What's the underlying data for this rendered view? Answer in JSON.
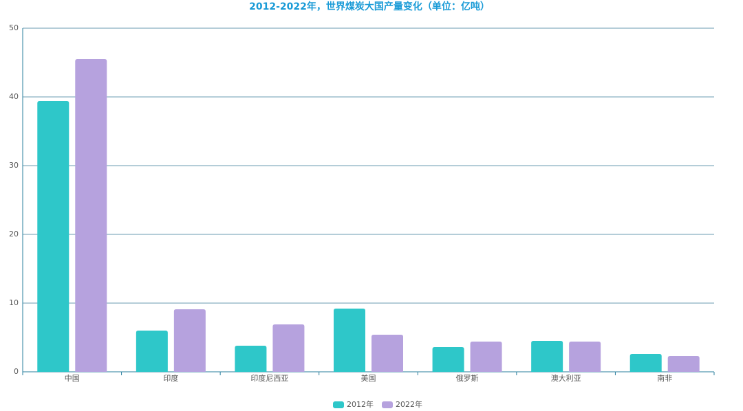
{
  "chart_data": {
    "type": "bar",
    "title": "2012-2022年，世界煤炭大国产量变化（单位：亿吨）",
    "categories": [
      "中国",
      "印度",
      "印度尼西亚",
      "美国",
      "俄罗斯",
      "澳大利亚",
      "南非"
    ],
    "series": [
      {
        "name": "2012年",
        "color": "#2ec7c9",
        "values": [
          39.4,
          6.0,
          3.8,
          9.2,
          3.6,
          4.5,
          2.6
        ]
      },
      {
        "name": "2022年",
        "color": "#b6a2de",
        "values": [
          45.5,
          9.1,
          6.9,
          5.4,
          4.4,
          4.4,
          2.3
        ]
      }
    ],
    "ylim": [
      0,
      50
    ],
    "yticks": [
      0,
      10,
      20,
      30,
      40,
      50
    ],
    "grid": true
  }
}
